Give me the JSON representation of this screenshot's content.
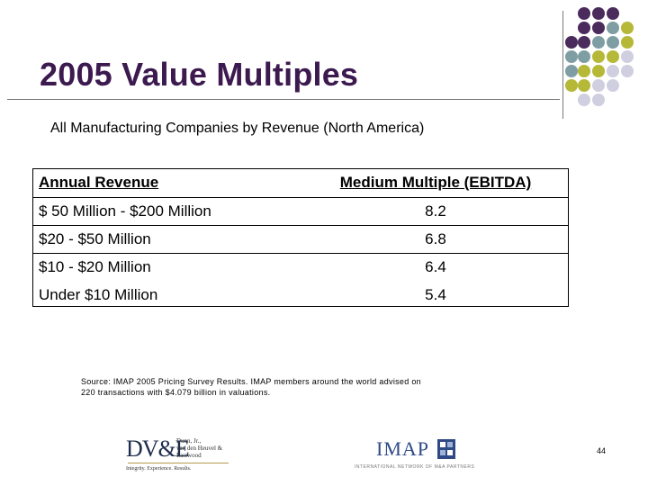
{
  "slide": {
    "title": "2005 Value Multiples",
    "subtitle": "All Manufacturing Companies by Revenue (North America)",
    "page_number": "44"
  },
  "table": {
    "headers": [
      "Annual Revenue",
      "Medium Multiple (EBITDA)"
    ],
    "rows": [
      [
        "$ 50 Million - $200 Million",
        "8.2"
      ],
      [
        "$20 - $50 Million",
        "6.8"
      ],
      [
        "$10 - $20 Million",
        "6.4"
      ],
      [
        "Under $10 Million",
        "5.4"
      ]
    ]
  },
  "source": {
    "line1": "Source: IMAP 2005 Pricing Survey Results. IMAP members around the world advised on",
    "line2": "220 transactions with $4.079 billion in valuations."
  },
  "logos": {
    "dvke": {
      "monogram": "DV&E",
      "name_line1": "Dunn, Jr.,",
      "name_line2": "van den Heuvel &",
      "name_line3": "Eastwood",
      "tagline": "Integrity. Experience. Results."
    },
    "imap": {
      "wordmark": "IMAP",
      "tagline": "INTERNATIONAL NETWORK OF M&A PARTNERS"
    }
  },
  "colors": {
    "title": "#3c1a4f",
    "dot_purple": "#4b2a5c",
    "dot_teal": "#7e9ea3",
    "dot_olive": "#b6b838",
    "dot_lilac": "#d0cfe0"
  }
}
